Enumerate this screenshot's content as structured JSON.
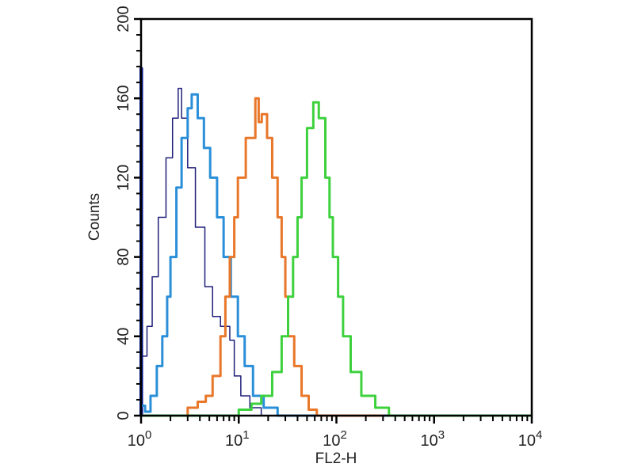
{
  "chart_data": {
    "type": "line",
    "title": "",
    "xlabel": "FL2-H",
    "ylabel": "Counts",
    "x_scale": "log",
    "xlim": [
      1,
      10000
    ],
    "ylim": [
      0,
      200
    ],
    "x_ticks": [
      {
        "base": "10",
        "exp": "0",
        "value": 1
      },
      {
        "base": "10",
        "exp": "1",
        "value": 10
      },
      {
        "base": "10",
        "exp": "2",
        "value": 100
      },
      {
        "base": "10",
        "exp": "3",
        "value": 1000
      },
      {
        "base": "10",
        "exp": "4",
        "value": 10000
      }
    ],
    "y_ticks": [
      "0",
      "40",
      "80",
      "120",
      "160",
      "200"
    ],
    "grid": false,
    "legend": "none",
    "series": [
      {
        "color": "#0a1aa0",
        "points": [
          [
            1,
            0
          ],
          [
            1,
            175
          ],
          [
            1.01,
            175
          ],
          [
            1.01,
            0
          ]
        ]
      },
      {
        "color": "#1f1f7a",
        "points": [
          [
            1,
            30
          ],
          [
            1.15,
            45
          ],
          [
            1.3,
            70
          ],
          [
            1.5,
            100
          ],
          [
            1.8,
            130
          ],
          [
            2.1,
            150
          ],
          [
            2.4,
            165
          ],
          [
            2.6,
            150
          ],
          [
            3,
            125
          ],
          [
            3.6,
            95
          ],
          [
            4.5,
            65
          ],
          [
            5.4,
            50
          ],
          [
            6.5,
            45
          ],
          [
            8.1,
            38
          ],
          [
            9,
            20
          ],
          [
            10.5,
            10
          ],
          [
            13,
            4
          ],
          [
            17,
            0
          ]
        ]
      },
      {
        "color": "#2a8fd8",
        "points": [
          [
            1,
            5
          ],
          [
            1.1,
            2
          ],
          [
            1.25,
            10
          ],
          [
            1.45,
            25
          ],
          [
            1.65,
            40
          ],
          [
            1.85,
            60
          ],
          [
            2.0,
            80
          ],
          [
            2.3,
            115
          ],
          [
            2.6,
            140
          ],
          [
            3.0,
            155
          ],
          [
            3.3,
            162
          ],
          [
            3.8,
            150
          ],
          [
            4.4,
            135
          ],
          [
            5.1,
            120
          ],
          [
            6,
            100
          ],
          [
            7,
            80
          ],
          [
            8.3,
            60
          ],
          [
            9.8,
            40
          ],
          [
            11.5,
            25
          ],
          [
            14,
            10
          ],
          [
            18,
            4
          ],
          [
            25,
            0
          ],
          [
            10000,
            0
          ]
        ]
      },
      {
        "color": "#e8772a",
        "points": [
          [
            2.3,
            0
          ],
          [
            3,
            4
          ],
          [
            3.8,
            7
          ],
          [
            4.6,
            10
          ],
          [
            5.4,
            20
          ],
          [
            6.5,
            40
          ],
          [
            7.3,
            60
          ],
          [
            8.1,
            80
          ],
          [
            9,
            100
          ],
          [
            9.8,
            120
          ],
          [
            11.8,
            140
          ],
          [
            14.8,
            160
          ],
          [
            16,
            148
          ],
          [
            17.2,
            152
          ],
          [
            19.5,
            140
          ],
          [
            22,
            120
          ],
          [
            25,
            100
          ],
          [
            27.5,
            80
          ],
          [
            30,
            60
          ],
          [
            32,
            40
          ],
          [
            37,
            25
          ],
          [
            44,
            10
          ],
          [
            52,
            3
          ],
          [
            63,
            0
          ],
          [
            300,
            0
          ]
        ]
      },
      {
        "color": "#3ed13e",
        "points": [
          [
            1,
            0
          ],
          [
            6.7,
            0
          ],
          [
            10,
            3
          ],
          [
            13.5,
            6
          ],
          [
            17,
            10
          ],
          [
            22,
            22
          ],
          [
            27.5,
            40
          ],
          [
            32,
            60
          ],
          [
            36,
            80
          ],
          [
            40,
            100
          ],
          [
            44,
            120
          ],
          [
            50,
            145
          ],
          [
            58,
            158
          ],
          [
            66,
            150
          ],
          [
            77,
            120
          ],
          [
            85,
            100
          ],
          [
            92,
            80
          ],
          [
            104,
            60
          ],
          [
            117,
            40
          ],
          [
            140,
            22
          ],
          [
            180,
            10
          ],
          [
            250,
            4
          ],
          [
            345,
            0
          ],
          [
            10000,
            0
          ]
        ]
      }
    ]
  }
}
